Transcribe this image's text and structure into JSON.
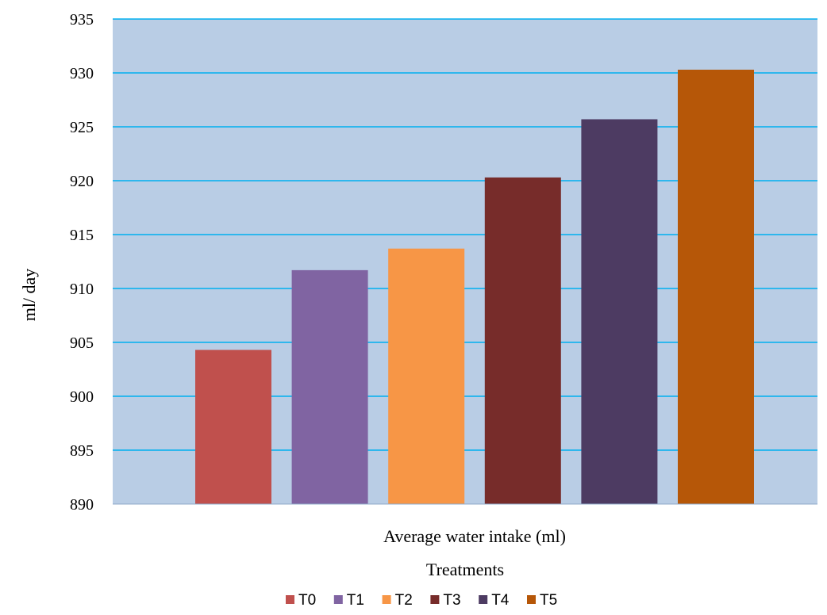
{
  "chart_data": {
    "type": "bar",
    "title": "",
    "category_label": "Average water intake (ml)",
    "xlabel": "Treatments",
    "ylabel": "ml/ day",
    "ylim": [
      890,
      935
    ],
    "ytick_step": 5,
    "yticks": [
      "890",
      "895",
      "900",
      "905",
      "910",
      "915",
      "920",
      "925",
      "930",
      "935"
    ],
    "grid": true,
    "legend_position": "bottom",
    "series": [
      {
        "name": "T0",
        "values": [
          904.3
        ],
        "color": "#C0504D"
      },
      {
        "name": "T1",
        "values": [
          911.7
        ],
        "color": "#8064A2"
      },
      {
        "name": "T2",
        "values": [
          913.7
        ],
        "color": "#F79646"
      },
      {
        "name": "T3",
        "values": [
          920.3
        ],
        "color": "#772C2A"
      },
      {
        "name": "T4",
        "values": [
          925.7
        ],
        "color": "#4D3B62"
      },
      {
        "name": "T5",
        "values": [
          930.3
        ],
        "color": "#B65708"
      }
    ],
    "plot_background": "#B9CDE5",
    "gridline_color": "#00B0F0"
  }
}
